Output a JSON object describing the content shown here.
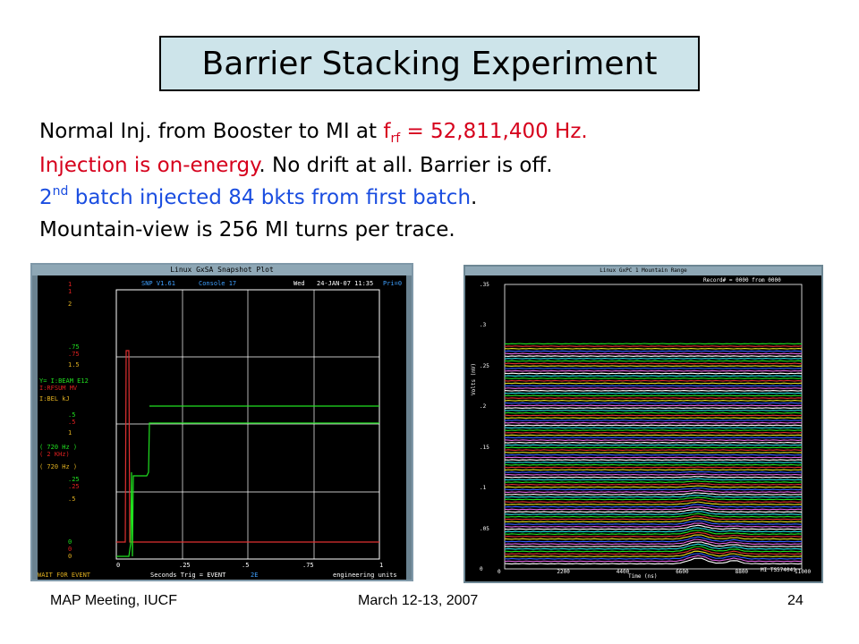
{
  "slide": {
    "title": "Barrier Stacking Experiment",
    "line1": {
      "a": "Normal Inj. from Booster to MI at ",
      "f": "f",
      "sub": "rf",
      "b": " = 52,811,400 Hz."
    },
    "line2": {
      "a": "Injection is on-energy",
      "b": ".  No drift at all.  Barrier is off."
    },
    "line3": {
      "num": "2",
      "sup": "nd",
      "a": " batch injected 84 bkts from first batch",
      "b": "."
    },
    "line4": "Mountain-view is 256 MI turns per trace."
  },
  "footer": {
    "left": "MAP Meeting, IUCF",
    "center": "March 12-13, 2007",
    "right": "24"
  },
  "snapshot_window": {
    "title": "Linux GxSA  Snapshot Plot",
    "header": {
      "version": "SNP V1.61",
      "console": "Console  17",
      "day": "Wed",
      "date": "24-JAN-07 11:35",
      "pri": "Pri=0"
    },
    "left_labels": [
      {
        "text": "1",
        "color": "#e02020"
      },
      {
        "text": "1",
        "color": "#e02020"
      },
      {
        "text": "2",
        "color": "#e0b020"
      },
      {
        "text": ".75",
        "color": "#20e020"
      },
      {
        "text": ".75",
        "color": "#e02020"
      },
      {
        "text": "1.5",
        "color": "#e0b020"
      },
      {
        "text": "Y= I:BEAM    E12",
        "color": "#20e020"
      },
      {
        "text": "   I:RFSUM  MV",
        "color": "#e02020"
      },
      {
        "text": "   I:BEL    kJ",
        "color": "#e0b020"
      },
      {
        "text": ".5",
        "color": "#20e020"
      },
      {
        "text": ".5",
        "color": "#e02020"
      },
      {
        "text": "1",
        "color": "#e0b020"
      },
      {
        "text": "( 720 Hz )",
        "color": "#20e020"
      },
      {
        "text": "( 2   KHz)",
        "color": "#e02020"
      },
      {
        "text": "( 720 Hz )",
        "color": "#e0b020"
      },
      {
        "text": ".25",
        "color": "#20e020"
      },
      {
        "text": ".25",
        "color": "#e02020"
      },
      {
        "text": ".5",
        "color": "#e0b020"
      },
      {
        "text": "0",
        "color": "#20e020"
      },
      {
        "text": "0",
        "color": "#e02020"
      },
      {
        "text": "0",
        "color": "#e0b020"
      }
    ],
    "x_ticks": [
      "0",
      ".25",
      ".5",
      ".75",
      "1"
    ],
    "footer": {
      "wait": "WAIT FOR EVENT",
      "axis": "Seconds   Trig = EVENT",
      "event": "2E",
      "units": "engineering units"
    },
    "colors": {
      "beam": "#20e020",
      "rfsum": "#e03030",
      "grid": "#ffffff"
    }
  },
  "mountain_window": {
    "title": "Linux GxPC 1  Mountain Range",
    "record": "Record# = 0000 from 0000",
    "y_ticks": [
      ".35",
      ".3",
      ".25",
      ".2",
      ".15",
      ".1",
      ".05",
      "0"
    ],
    "y_label": "Volts (mV)",
    "x_ticks": [
      "0",
      "2200",
      "4400",
      "6600",
      "8800",
      "11000"
    ],
    "x_label": "Time (ns)",
    "corner_label": "MI TS574041",
    "trace_colors": [
      "#20e020",
      "#e03030",
      "#e0e020",
      "#3060ff",
      "#e060e0",
      "#ffffff",
      "#20e0e0"
    ]
  }
}
